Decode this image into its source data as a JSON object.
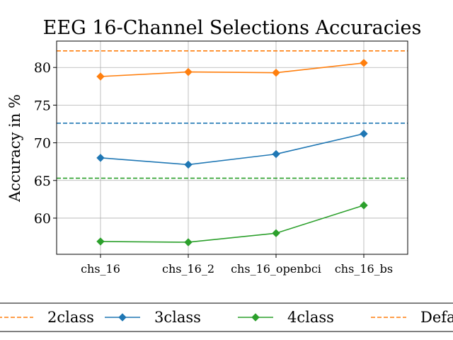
{
  "chart_data": {
    "type": "line",
    "title": "EEG 16-Channel Selections Accuracies",
    "xlabel": "",
    "ylabel": "Accuracy in %",
    "categories": [
      "chs_16",
      "chs_16_2",
      "chs_16_openbci",
      "chs_16_bs"
    ],
    "ylim": [
      55.2,
      83.5
    ],
    "yticks": [
      60,
      65,
      70,
      75,
      80
    ],
    "grid": true,
    "legend_placement": "bottom",
    "series": [
      {
        "name": "2class",
        "color": "#ff7f0e",
        "marker": "diamond",
        "values": [
          78.8,
          79.4,
          79.3,
          80.6
        ]
      },
      {
        "name": "3class",
        "color": "#1f77b4",
        "marker": "diamond",
        "values": [
          68.0,
          67.1,
          68.5,
          71.2
        ]
      },
      {
        "name": "4class",
        "color": "#2ca02c",
        "marker": "diamond",
        "values": [
          56.9,
          56.8,
          58.0,
          61.7
        ]
      }
    ],
    "reference_lines": [
      {
        "color": "#ff7f0e",
        "style": "dashed",
        "value": 82.2
      },
      {
        "color": "#1f77b4",
        "style": "dashed",
        "value": 72.6
      },
      {
        "color": "#2ca02c",
        "style": "dashed",
        "value": 65.3
      }
    ],
    "legend": [
      {
        "label": "2class",
        "color": "#ff7f0e",
        "style": "dashed",
        "marker": "none"
      },
      {
        "label": "3class",
        "color": "#1f77b4",
        "style": "solid",
        "marker": "diamond"
      },
      {
        "label": "4class",
        "color": "#2ca02c",
        "style": "solid",
        "marker": "diamond"
      },
      {
        "label": "Defa",
        "color": "#ff7f0e",
        "style": "dashed",
        "marker": "none"
      }
    ]
  }
}
